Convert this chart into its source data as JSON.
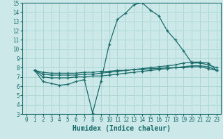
{
  "xlabel": "Humidex (Indice chaleur)",
  "bg_color": "#cce8e8",
  "grid_color": "#aad4d4",
  "line_color": "#1a6b6b",
  "xlim": [
    -0.5,
    23.5
  ],
  "ylim": [
    3,
    15
  ],
  "xticks": [
    0,
    1,
    2,
    3,
    4,
    5,
    6,
    7,
    8,
    9,
    10,
    11,
    12,
    13,
    14,
    15,
    16,
    17,
    18,
    19,
    20,
    21,
    22,
    23
  ],
  "yticks": [
    3,
    4,
    5,
    6,
    7,
    8,
    9,
    10,
    11,
    12,
    13,
    14,
    15
  ],
  "line1_x": [
    1,
    2,
    3,
    4,
    5,
    6,
    7,
    8,
    9,
    10,
    11,
    12,
    13,
    14,
    15,
    16,
    17,
    18,
    19,
    20,
    21,
    22,
    23
  ],
  "line1_y": [
    7.7,
    6.5,
    6.3,
    6.1,
    6.2,
    6.5,
    6.7,
    3.1,
    6.5,
    10.5,
    13.2,
    13.9,
    14.8,
    15.0,
    14.2,
    13.6,
    12.0,
    11.0,
    9.8,
    8.5,
    8.5,
    8.3,
    8.0
  ],
  "line2_x": [
    1,
    2,
    3,
    4,
    5,
    6,
    7,
    8,
    9,
    10,
    11,
    12,
    13,
    14,
    15,
    16,
    17,
    18,
    19,
    20,
    21,
    22,
    23
  ],
  "line2_y": [
    7.7,
    7.3,
    7.2,
    7.2,
    7.2,
    7.2,
    7.3,
    7.3,
    7.4,
    7.5,
    7.6,
    7.7,
    7.8,
    7.9,
    8.0,
    8.1,
    8.2,
    8.3,
    8.5,
    8.6,
    8.6,
    8.5,
    7.7
  ],
  "line3_x": [
    1,
    2,
    3,
    4,
    5,
    6,
    7,
    8,
    9,
    10,
    11,
    12,
    13,
    14,
    15,
    16,
    17,
    18,
    19,
    20,
    21,
    22,
    23
  ],
  "line3_y": [
    7.7,
    7.0,
    6.9,
    6.9,
    6.9,
    7.0,
    7.0,
    7.1,
    7.1,
    7.2,
    7.3,
    7.4,
    7.5,
    7.6,
    7.7,
    7.8,
    7.9,
    8.0,
    8.1,
    8.2,
    8.2,
    8.1,
    7.7
  ],
  "line4_x": [
    1,
    2,
    3,
    4,
    5,
    6,
    7,
    8,
    9,
    10,
    11,
    12,
    13,
    14,
    15,
    16,
    17,
    18,
    19,
    20,
    21,
    22,
    23
  ],
  "line4_y": [
    7.7,
    7.5,
    7.4,
    7.4,
    7.4,
    7.4,
    7.5,
    7.5,
    7.6,
    7.6,
    7.7,
    7.7,
    7.8,
    7.8,
    7.9,
    7.9,
    8.0,
    8.0,
    8.0,
    8.1,
    8.1,
    7.9,
    7.7
  ]
}
